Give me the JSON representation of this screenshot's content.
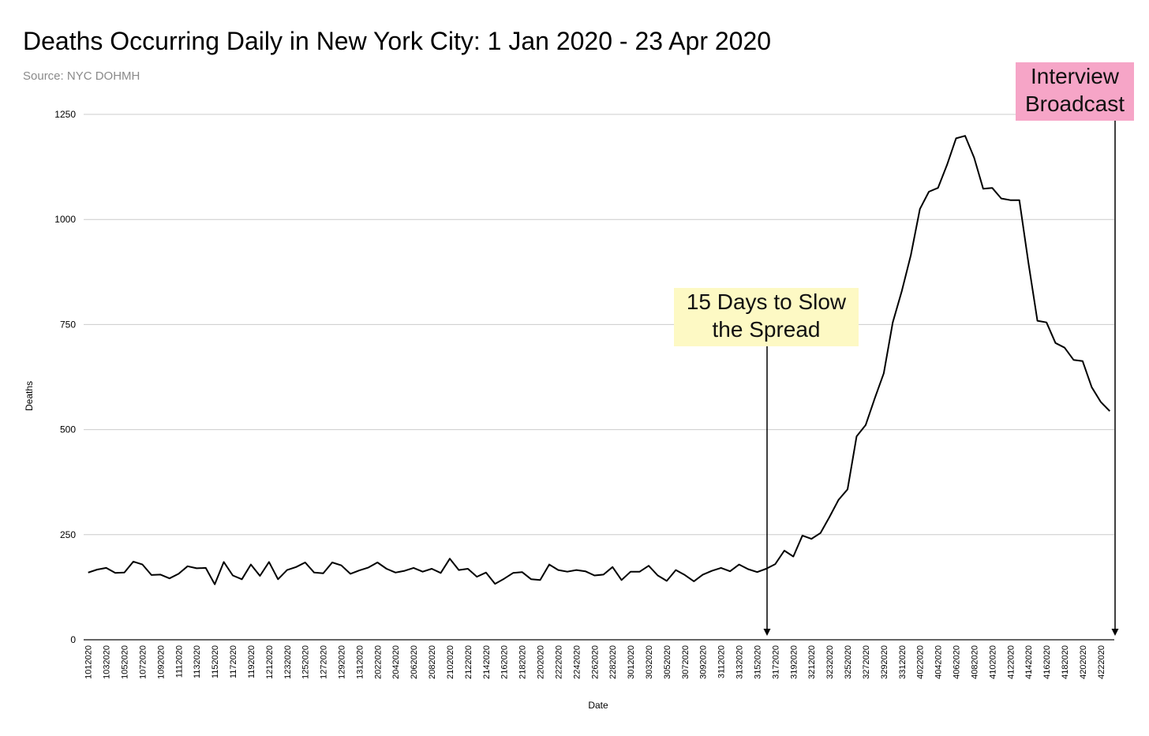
{
  "chart_data": {
    "type": "line",
    "title": "Deaths Occurring Daily in New York City: 1 Jan 2020 - 23 Apr 2020",
    "subtitle": "Source: NYC DOHMH",
    "xlabel": "Date",
    "ylabel": "Deaths",
    "ylim": [
      0,
      1250
    ],
    "yticks": [
      0,
      250,
      500,
      750,
      1000,
      1250
    ],
    "grid": true,
    "legend": "none",
    "line_color": "#000000",
    "x_tick_labels": [
      "1012020",
      "1032020",
      "1052020",
      "1072020",
      "1092020",
      "1112020",
      "1132020",
      "1152020",
      "1172020",
      "1192020",
      "1212020",
      "1232020",
      "1252020",
      "1272020",
      "1292020",
      "1312020",
      "2022020",
      "2042020",
      "2062020",
      "2082020",
      "2102020",
      "2122020",
      "2142020",
      "2162020",
      "2182020",
      "2202020",
      "2222020",
      "2242020",
      "2262020",
      "2282020",
      "3012020",
      "3032020",
      "3052020",
      "3072020",
      "3092020",
      "3112020",
      "3132020",
      "3152020",
      "3172020",
      "3192020",
      "3212020",
      "3232020",
      "3252020",
      "3272020",
      "3292020",
      "3312020",
      "4022020",
      "4042020",
      "4062020",
      "4082020",
      "4102020",
      "4122020",
      "4142020",
      "4162020",
      "4182020",
      "4202020",
      "4222020"
    ],
    "values": [
      160,
      167,
      171,
      159,
      160,
      186,
      179,
      154,
      155,
      146,
      157,
      175,
      170,
      171,
      132,
      185,
      153,
      144,
      179,
      152,
      185,
      144,
      166,
      173,
      184,
      160,
      158,
      184,
      177,
      157,
      165,
      172,
      184,
      169,
      160,
      164,
      171,
      162,
      169,
      159,
      193,
      166,
      169,
      150,
      160,
      133,
      145,
      159,
      161,
      144,
      142,
      179,
      166,
      162,
      166,
      163,
      153,
      155,
      173,
      142,
      162,
      162,
      176,
      153,
      140,
      166,
      154,
      139,
      155,
      164,
      171,
      163,
      179,
      168,
      161,
      169,
      180,
      212,
      198,
      248,
      240,
      254,
      292,
      333,
      358,
      484,
      511,
      574,
      634,
      755,
      830,
      915,
      1025,
      1066,
      1075,
      1130,
      1193,
      1199,
      1147,
      1073,
      1075,
      1050,
      1046,
      1046,
      897,
      759,
      755,
      706,
      695,
      666,
      663,
      601,
      566,
      544
    ],
    "annotations": [
      {
        "lines": [
          "15 Days to Slow",
          "the Spread"
        ],
        "x": "3162020",
        "color": "#fdf9c4"
      },
      {
        "lines": [
          "Interview",
          "Broadcast"
        ],
        "x": "4232020",
        "color": "#f6a5c7"
      }
    ]
  }
}
